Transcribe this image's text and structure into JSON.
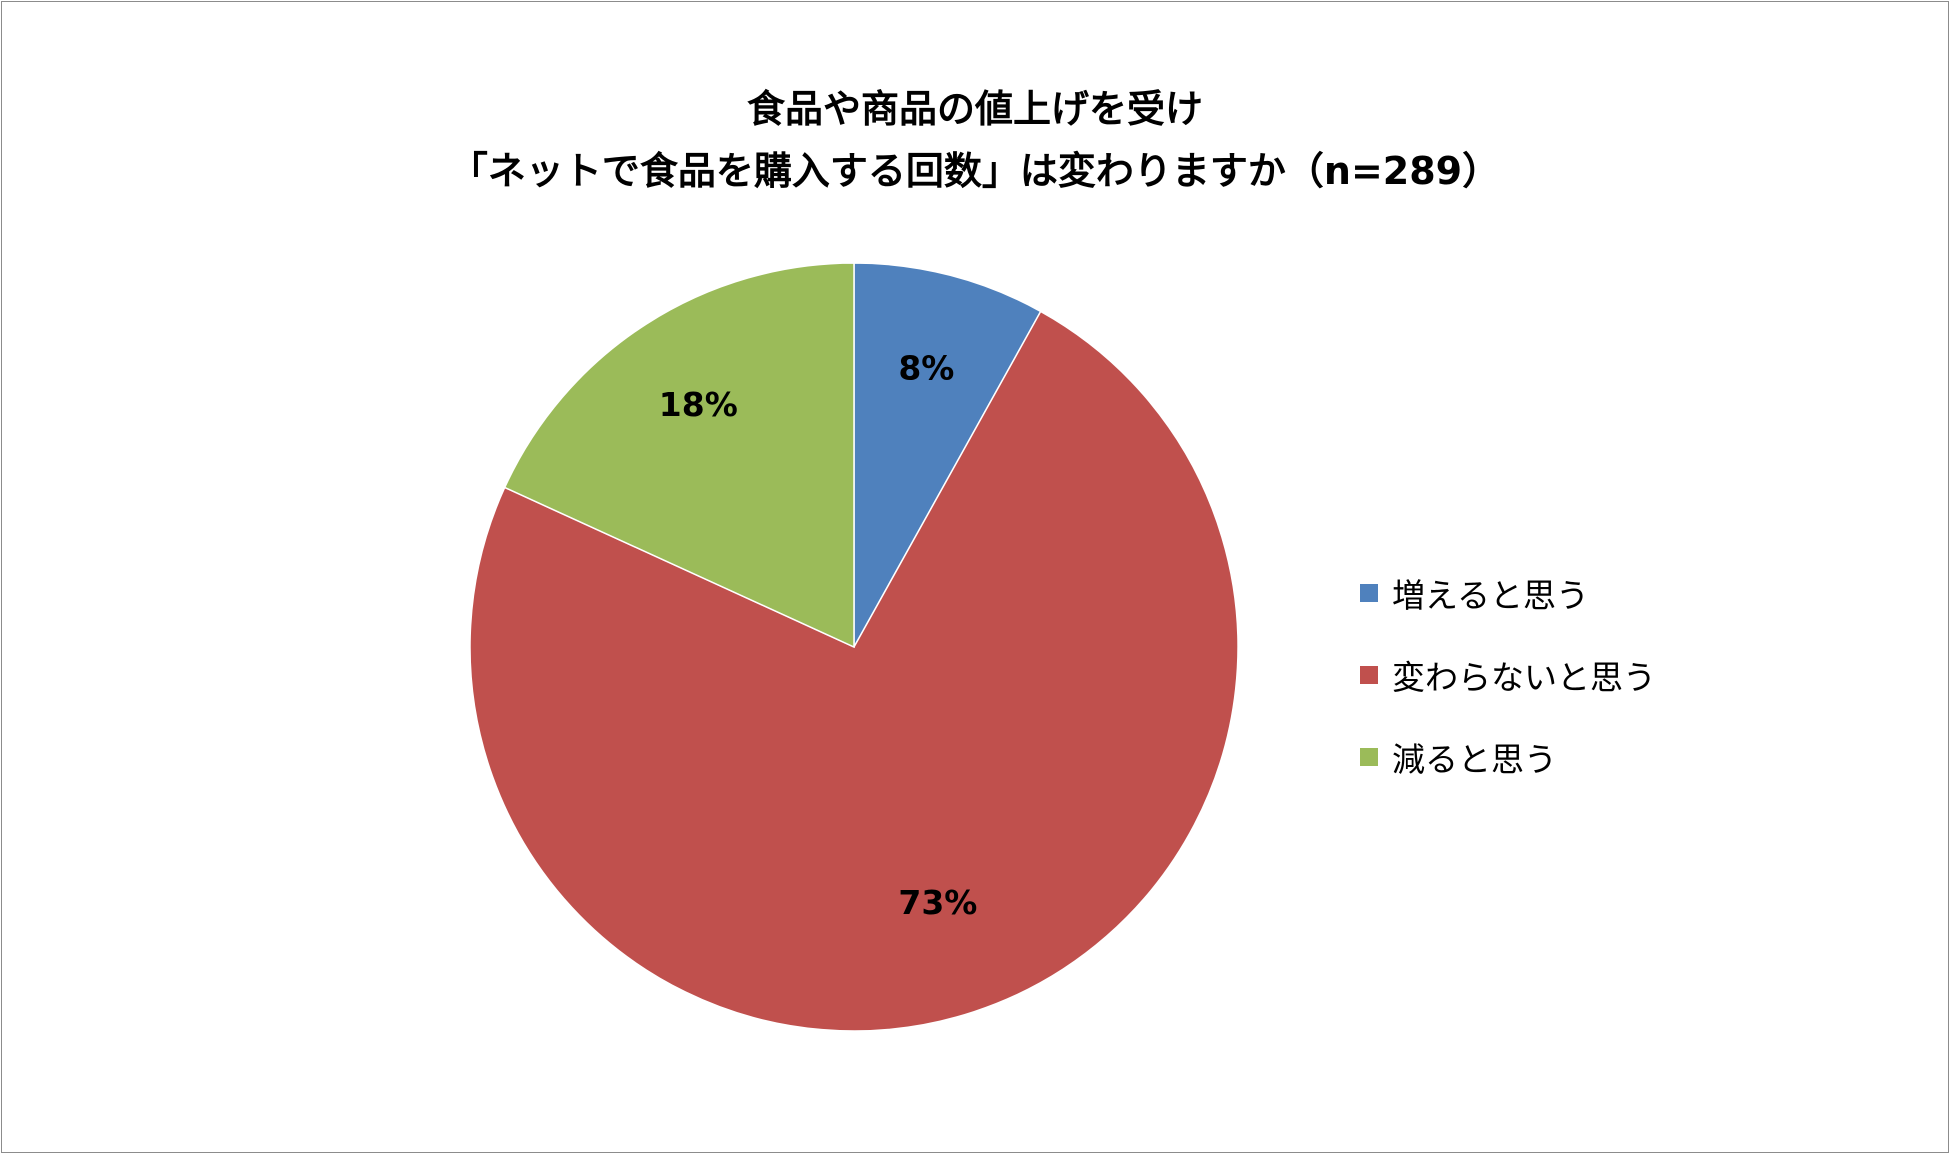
{
  "chart_data": {
    "type": "pie",
    "title_lines": [
      "食品や商品の値上げを受け",
      "「ネットで食品を購入する回数」は変わりますか（n=289）"
    ],
    "categories": [
      "増えると思う",
      "変わらないと思う",
      "減ると思う"
    ],
    "values": [
      8,
      73,
      18
    ],
    "data_labels": [
      "8%",
      "73%",
      "18%"
    ],
    "colors": [
      "#4f81bd",
      "#c0504d",
      "#9bbb59"
    ],
    "legend_position": "right",
    "start_angle": "12 o'clock",
    "direction": "clockwise"
  }
}
